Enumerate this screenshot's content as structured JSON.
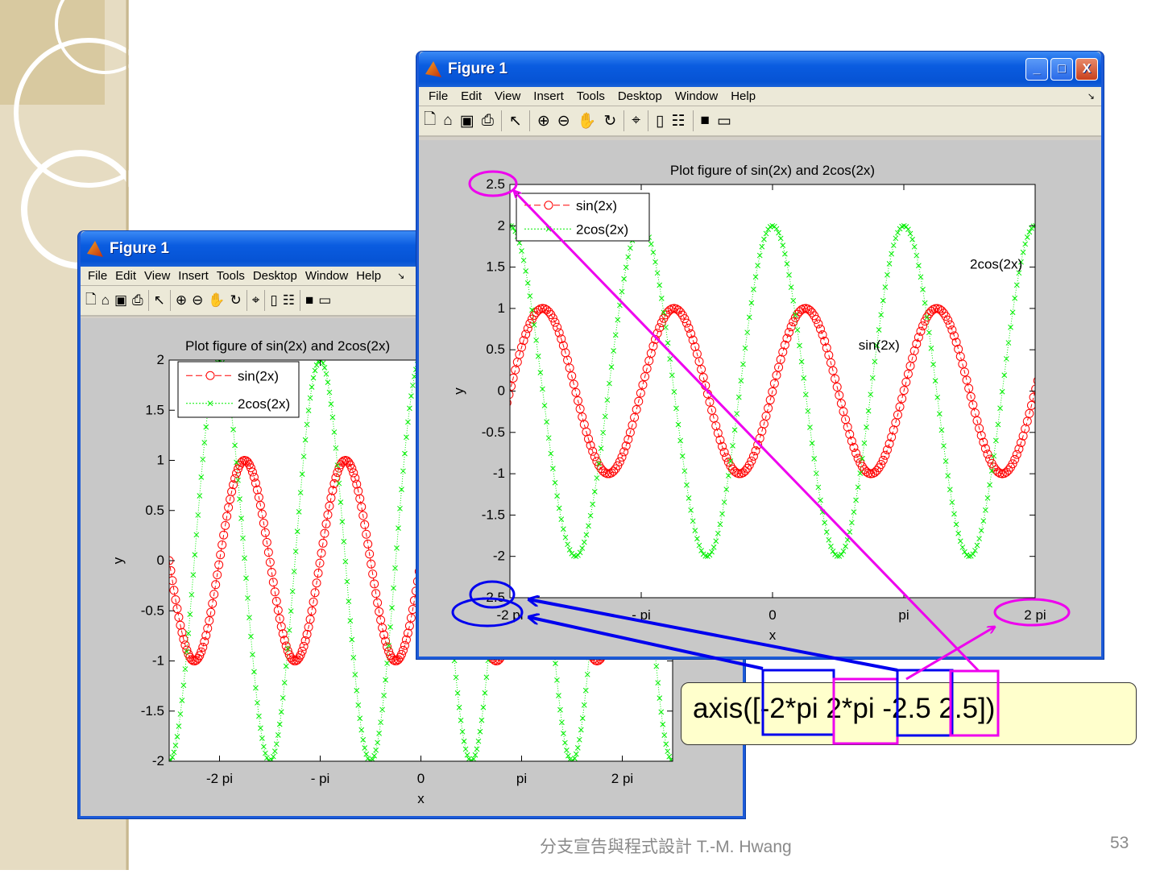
{
  "slide": {
    "footer": "分支宣告與程式設計    T.-M. Hwang",
    "page_number": "53",
    "callout_text": "axis([-2*pi 2*pi -2.5 2.5])",
    "annotation_colors": {
      "blue": "#0000ee",
      "magenta": "#ee00ee"
    }
  },
  "windows": [
    {
      "title": "Figure 1",
      "menu": [
        "File",
        "Edit",
        "View",
        "Insert",
        "Tools",
        "Desktop",
        "Window",
        "Help"
      ],
      "toolbar_icons": [
        "new-file-icon",
        "open-folder-icon",
        "save-icon",
        "print-icon",
        "pointer-icon",
        "zoom-in-icon",
        "zoom-out-icon",
        "pan-hand-icon",
        "rotate-3d-icon",
        "data-cursor-icon",
        "colorbar-icon",
        "legend-icon",
        "hide-plot-tools-icon",
        "show-plot-tools-icon"
      ],
      "window_buttons": {
        "minimize": "_",
        "maximize": "□",
        "close": "X"
      }
    },
    {
      "title": "Figure 1",
      "menu": [
        "File",
        "Edit",
        "View",
        "Insert",
        "Tools",
        "Desktop",
        "Window",
        "Help"
      ],
      "toolbar_icons": [
        "new-file-icon",
        "open-folder-icon",
        "save-icon",
        "print-icon",
        "pointer-icon",
        "zoom-in-icon",
        "zoom-out-icon",
        "pan-hand-icon",
        "rotate-3d-icon",
        "data-cursor-icon",
        "colorbar-icon",
        "legend-icon",
        "hide-plot-tools-icon",
        "show-plot-tools-icon"
      ],
      "window_buttons": {
        "minimize": "_",
        "maximize": "□",
        "close": "X"
      }
    }
  ],
  "chart_data": [
    {
      "type": "line",
      "title": "Plot figure of sin(2x) and 2cos(2x)",
      "xlabel": "x",
      "ylabel": "y",
      "xlim": [
        -7.854,
        7.854
      ],
      "ylim": [
        -2,
        2
      ],
      "xticks": [
        -6.2832,
        -3.1416,
        0,
        3.1416,
        6.2832
      ],
      "xtick_labels": [
        "-2 pi",
        "- pi",
        "0",
        "pi",
        "2 pi"
      ],
      "yticks": [
        -2,
        -1.5,
        -1,
        -0.5,
        0,
        0.5,
        1,
        1.5,
        2
      ],
      "ytick_labels": [
        "-2",
        "-1.5",
        "-1",
        "-0.5",
        "0",
        "0.5",
        "1",
        "1.5",
        "2"
      ],
      "grid": false,
      "legend_position": "top-left",
      "series": [
        {
          "name": "sin(2x)",
          "expression": "sin(2x)",
          "x_start": -7.854,
          "x_stop": 7.854,
          "x_step": 0.05,
          "color": "#ff0000",
          "marker": "circle",
          "line_style": "dashed"
        },
        {
          "name": "2cos(2x)",
          "expression": "2cos(2x)",
          "x_start": -7.854,
          "x_stop": 7.854,
          "x_step": 0.05,
          "color": "#00ee00",
          "marker": "x",
          "line_style": "dotted"
        }
      ],
      "annotations": []
    },
    {
      "type": "line",
      "title": "Plot figure of sin(2x) and 2cos(2x)",
      "xlabel": "x",
      "ylabel": "y",
      "xlim": [
        -6.2832,
        6.2832
      ],
      "ylim": [
        -2.5,
        2.5
      ],
      "xticks": [
        -6.2832,
        -3.1416,
        0,
        3.1416,
        6.2832
      ],
      "xtick_labels": [
        "-2 pi",
        "- pi",
        "0",
        "pi",
        "2 pi"
      ],
      "yticks": [
        -2.5,
        -2,
        -1.5,
        -1,
        -0.5,
        0,
        0.5,
        1,
        1.5,
        2,
        2.5
      ],
      "ytick_labels": [
        "-2.5",
        "-2",
        "-1.5",
        "-1",
        "-0.5",
        "0",
        "0.5",
        "1",
        "1.5",
        "2",
        "2.5"
      ],
      "grid": false,
      "legend_position": "top-left",
      "series": [
        {
          "name": "sin(2x)",
          "expression": "sin(2x)",
          "x_start": -7.854,
          "x_stop": 7.854,
          "x_step": 0.05,
          "color": "#ff0000",
          "marker": "circle",
          "line_style": "dashed"
        },
        {
          "name": "2cos(2x)",
          "expression": "2cos(2x)",
          "x_start": -7.854,
          "x_stop": 7.854,
          "x_step": 0.05,
          "color": "#00ee00",
          "marker": "x",
          "line_style": "dotted"
        }
      ],
      "annotations": [
        {
          "text": "2cos(2x)",
          "x": 5.35,
          "y": 1.48
        },
        {
          "text": "sin(2x)",
          "x": 2.55,
          "y": 0.5
        }
      ]
    }
  ]
}
